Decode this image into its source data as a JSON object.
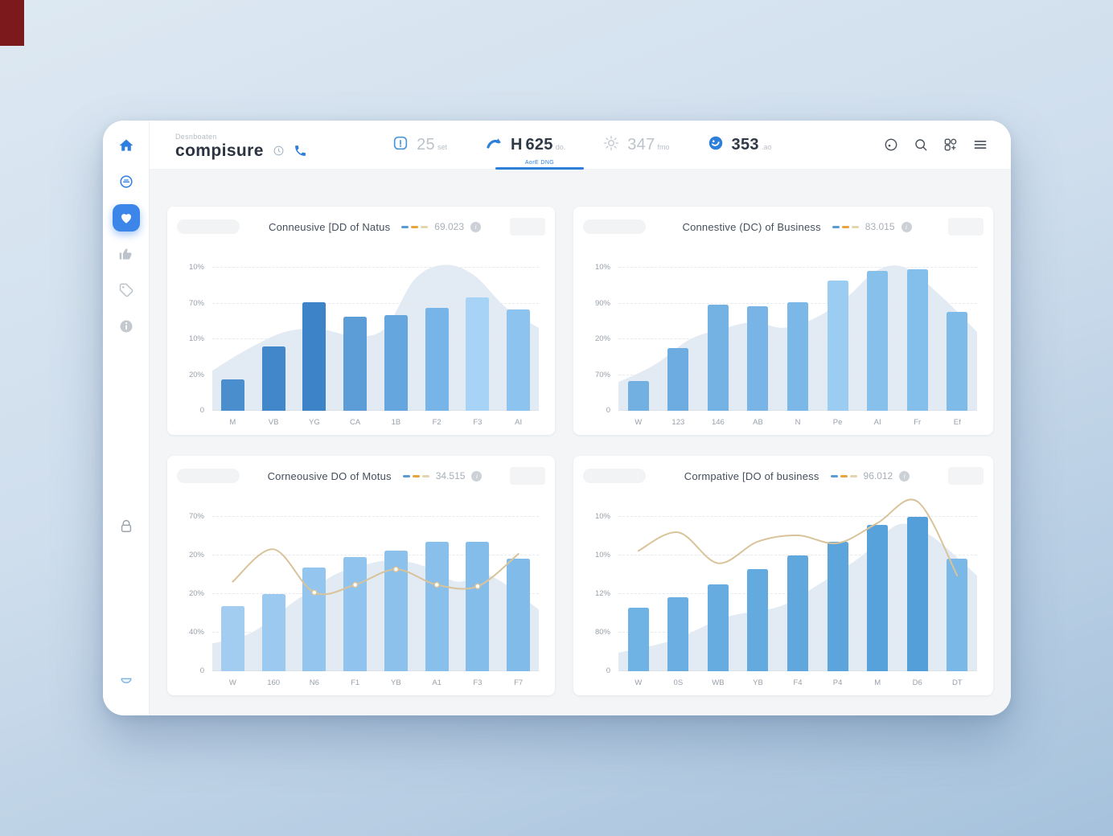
{
  "page": {
    "corner_accent_color": "#7c191d",
    "accent_color": "#2e7fd9",
    "content_background": "#f3f5f7"
  },
  "sidebar": {
    "icons": [
      "home-icon",
      "badge-icon",
      "heart-icon",
      "thumbs-up-icon",
      "tag-icon",
      "info-icon",
      "lock-icon",
      "tray-icon"
    ],
    "active_index": 2,
    "active_color": "#3b86e8"
  },
  "header": {
    "eyebrow": "Desnboaten",
    "title": "compisure",
    "title_icons": [
      "clock-icon",
      "phone-icon"
    ],
    "stats": [
      {
        "value": "25",
        "unit": "set",
        "icon": "gauge-icon",
        "emphasis": "dim"
      },
      {
        "prefix": "H",
        "value": "625",
        "unit": "do.",
        "icon": "trend-arrow-icon",
        "emphasis": "strong",
        "active_tab_label": "AorE DNG"
      },
      {
        "value": "347",
        "unit": "fmo",
        "icon": "sun-icon",
        "emphasis": "dim"
      },
      {
        "value": "353",
        "unit": ".ao",
        "icon": "orbit-icon",
        "emphasis": "strong"
      }
    ],
    "right_icons": [
      "assistant-icon",
      "search-icon",
      "apps-icon",
      "menu-icon"
    ]
  },
  "chart_data": [
    {
      "type": "bar",
      "title": "Conneusive [DD of Natus",
      "value_label": "69.023",
      "legend_colors": [
        "#5b9bd5",
        "#e8a43e",
        "#e3d5ae"
      ],
      "y_ticks": [
        "10%",
        "70%",
        "10%",
        "20%",
        "0"
      ],
      "categories": [
        "M",
        "VB",
        "YG",
        "CA",
        "1B",
        "F2",
        "F3",
        "AI"
      ],
      "values": [
        22,
        45,
        76,
        66,
        67,
        72,
        79,
        71
      ],
      "bar_colors": [
        "#4a8ecd",
        "#4287ca",
        "#3d83c8",
        "#5c9cd7",
        "#66a6de",
        "#77b4e7",
        "#a7d3f6",
        "#8dc3ef"
      ],
      "ylim": [
        0,
        100
      ],
      "grid": "dashed",
      "area_color": "#dbe5f0",
      "area": [
        [
          0,
          28
        ],
        [
          0.1,
          42
        ],
        [
          0.22,
          55
        ],
        [
          0.33,
          57
        ],
        [
          0.44,
          52
        ],
        [
          0.53,
          58
        ],
        [
          0.62,
          92
        ],
        [
          0.71,
          102
        ],
        [
          0.8,
          95
        ],
        [
          0.9,
          72
        ],
        [
          1,
          58
        ]
      ],
      "line": null
    },
    {
      "type": "bar",
      "title": "Connestive (DC) of Business",
      "value_label": "83.015",
      "legend_colors": [
        "#5b9bd5",
        "#e8a43e",
        "#e3d5ae"
      ],
      "y_ticks": [
        "10%",
        "90%",
        "20%",
        "70%",
        "0"
      ],
      "categories": [
        "W",
        "123",
        "146",
        "AB",
        "N",
        "Pe",
        "AI",
        "Fr",
        "Ef"
      ],
      "values": [
        21,
        44,
        74,
        73,
        76,
        91,
        98,
        99,
        69
      ],
      "bar_colors": [
        "#72b0e2",
        "#6cace0",
        "#74b2e4",
        "#78b5e6",
        "#7bb8e8",
        "#9bcdf2",
        "#88c0ec",
        "#84beeb",
        "#7fbbe9"
      ],
      "ylim": [
        0,
        100
      ],
      "grid": "dashed",
      "area_color": "#dbe5f0",
      "area": [
        [
          0,
          20
        ],
        [
          0.1,
          32
        ],
        [
          0.2,
          50
        ],
        [
          0.3,
          58
        ],
        [
          0.38,
          62
        ],
        [
          0.46,
          58
        ],
        [
          0.55,
          65
        ],
        [
          0.64,
          80
        ],
        [
          0.72,
          98
        ],
        [
          0.8,
          100
        ],
        [
          0.9,
          80
        ],
        [
          1,
          55
        ]
      ],
      "line": null
    },
    {
      "type": "bar",
      "title": "Corneousive DO of Motus",
      "value_label": "34.515",
      "legend_colors": [
        "#5b9bd5",
        "#e8a43e",
        "#e3d5ae"
      ],
      "y_ticks": [
        "70%",
        "20%",
        "20%",
        "40%",
        "0"
      ],
      "categories": [
        "W",
        "160",
        "N6",
        "F1",
        "YB",
        "A1",
        "F3",
        "F7"
      ],
      "values": [
        42,
        50,
        67,
        74,
        78,
        84,
        84,
        73
      ],
      "bar_colors": [
        "#a3cdf0",
        "#9cc9ef",
        "#94c5ee",
        "#90c3ed",
        "#8cc1ec",
        "#88bfeb",
        "#85bdea",
        "#81bbe9"
      ],
      "ylim": [
        0,
        100
      ],
      "grid": "dashed",
      "area_color": "#dbe5f0",
      "area": [
        [
          0,
          18
        ],
        [
          0.12,
          25
        ],
        [
          0.25,
          45
        ],
        [
          0.37,
          62
        ],
        [
          0.45,
          68
        ],
        [
          0.55,
          72
        ],
        [
          0.65,
          68
        ],
        [
          0.75,
          58
        ],
        [
          0.85,
          62
        ],
        [
          1,
          40
        ]
      ],
      "line": {
        "color": "#d8c39a",
        "values": [
          58,
          79,
          51,
          56,
          66,
          56,
          55,
          76
        ],
        "dot_indices": [
          2,
          3,
          4,
          5,
          6
        ]
      }
    },
    {
      "type": "bar",
      "title": "Cormpative [DO of business",
      "value_label": "96.012",
      "legend_colors": [
        "#5b9bd5",
        "#e8a43e",
        "#e3d5ae"
      ],
      "y_ticks": [
        "10%",
        "10%",
        "12%",
        "80%",
        "0"
      ],
      "categories": [
        "W",
        "0S",
        "WB",
        "YB",
        "F4",
        "P4",
        "M",
        "D6",
        "DT"
      ],
      "values": [
        41,
        48,
        56,
        66,
        75,
        84,
        95,
        100,
        73
      ],
      "bar_colors": [
        "#6fb2e4",
        "#6bafe2",
        "#67ace1",
        "#63aadf",
        "#60a7de",
        "#5ca5dc",
        "#58a2db",
        "#549fd9",
        "#7ab8e8"
      ],
      "ylim": [
        0,
        100
      ],
      "grid": "dashed",
      "area_color": "#dbe5f0",
      "area": [
        [
          0,
          12
        ],
        [
          0.15,
          20
        ],
        [
          0.3,
          35
        ],
        [
          0.45,
          42
        ],
        [
          0.55,
          55
        ],
        [
          0.68,
          75
        ],
        [
          0.78,
          95
        ],
        [
          0.87,
          88
        ],
        [
          1,
          62
        ]
      ],
      "line": {
        "color": "#d8c39a",
        "values": [
          78,
          90,
          70,
          84,
          88,
          83,
          96,
          110,
          62
        ],
        "dot_indices": []
      }
    }
  ]
}
